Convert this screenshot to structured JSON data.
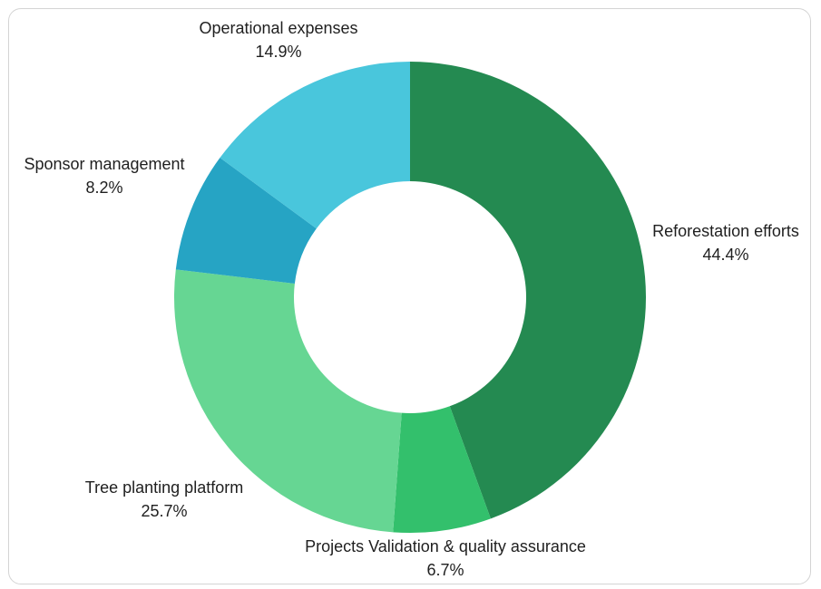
{
  "chart_data": {
    "type": "pie",
    "donut": true,
    "slices": [
      {
        "name": "Reforestation efforts",
        "value": 44.4,
        "label": "44.4%",
        "color": "#248a51"
      },
      {
        "name": "Projects Validation & quality assurance",
        "value": 6.7,
        "label": "6.7%",
        "color": "#33c06c"
      },
      {
        "name": "Tree planting platform",
        "value": 25.7,
        "label": "25.7%",
        "color": "#66d693"
      },
      {
        "name": "Sponsor management",
        "value": 8.2,
        "label": "8.2%",
        "color": "#26a4c4"
      },
      {
        "name": "Operational expenses",
        "value": 14.9,
        "label": "14.9%",
        "color": "#49c6dc"
      }
    ]
  }
}
